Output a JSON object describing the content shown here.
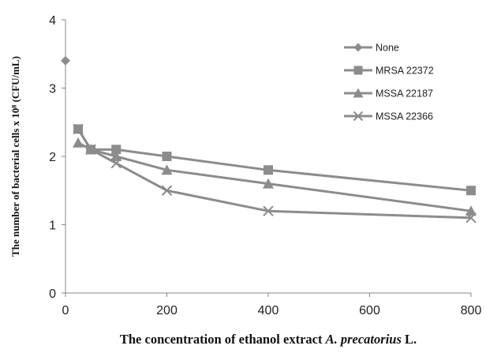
{
  "chart_data": {
    "type": "line",
    "title": "",
    "xlabel_parts": [
      "The concentration  of ethanol extract ",
      "A. precatorius",
      " L."
    ],
    "ylabel": "The number of bacterial cells x 10⁸ (CFU/mL)",
    "xlim": [
      0,
      800
    ],
    "ylim": [
      0,
      4
    ],
    "x_ticks": [
      "0",
      "200",
      "400",
      "600",
      "800"
    ],
    "y_ticks": [
      "0",
      "1",
      "2",
      "3",
      "4"
    ],
    "grid": false,
    "legend_position": "top-right",
    "series": [
      {
        "name": "None",
        "marker": "diamond",
        "color": "#8c8c8c",
        "points": [
          [
            0,
            3.4
          ]
        ]
      },
      {
        "name": "MRSA 22372",
        "marker": "square",
        "color": "#8c8c8c",
        "points": [
          [
            25,
            2.4
          ],
          [
            50,
            2.1
          ],
          [
            100,
            2.1
          ],
          [
            200,
            2.0
          ],
          [
            400,
            1.8
          ],
          [
            800,
            1.5
          ]
        ]
      },
      {
        "name": "MSSA 22187",
        "marker": "triangle",
        "color": "#8c8c8c",
        "points": [
          [
            25,
            2.2
          ],
          [
            50,
            2.1
          ],
          [
            100,
            2.0
          ],
          [
            200,
            1.8
          ],
          [
            400,
            1.6
          ],
          [
            800,
            1.2
          ]
        ]
      },
      {
        "name": "MSSA 22366",
        "marker": "x",
        "color": "#8c8c8c",
        "points": [
          [
            25,
            2.4
          ],
          [
            50,
            2.1
          ],
          [
            100,
            1.9
          ],
          [
            200,
            1.5
          ],
          [
            400,
            1.2
          ],
          [
            800,
            1.1
          ]
        ]
      }
    ]
  }
}
